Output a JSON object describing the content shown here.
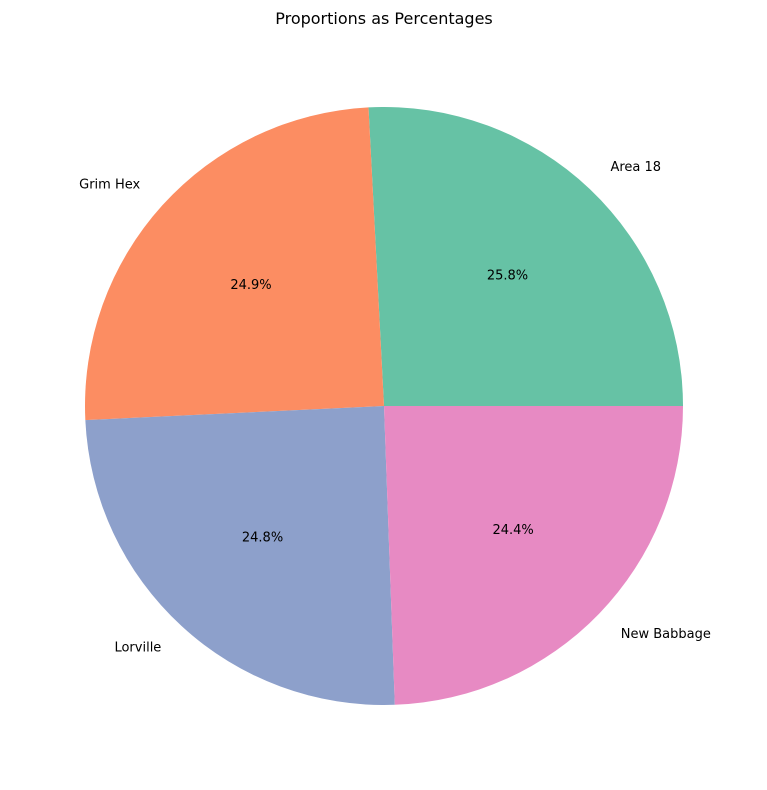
{
  "chart_data": {
    "type": "pie",
    "title": "Proportions as Percentages",
    "start_angle_deg": 0,
    "direction": "counterclockwise",
    "legend": "none",
    "slices": [
      {
        "label": "Area 18",
        "value": 25.8,
        "pct_text": "25.8%",
        "color": "#66c2a5"
      },
      {
        "label": "Grim Hex",
        "value": 24.9,
        "pct_text": "24.9%",
        "color": "#fc8d62"
      },
      {
        "label": "Lorville",
        "value": 24.8,
        "pct_text": "24.8%",
        "color": "#8da0cb"
      },
      {
        "label": "New Babbage",
        "value": 24.4,
        "pct_text": "24.4%",
        "color": "#e78ac3"
      }
    ]
  }
}
